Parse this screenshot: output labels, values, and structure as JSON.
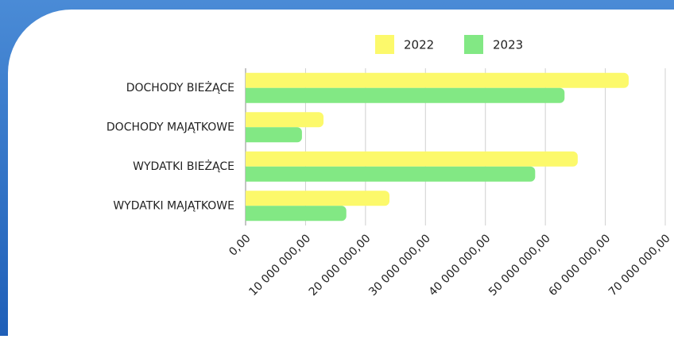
{
  "chart_data": {
    "type": "barh",
    "categories": [
      "DOCHODY BIEŻĄCE",
      "DOCHODY MAJĄTKOWE",
      "WYDATKI BIEŻĄCE",
      "WYDATKI MAJĄTKOWE"
    ],
    "series": [
      {
        "name": "2022",
        "color": "#fcf96b",
        "values": [
          63900000,
          13000000,
          55400000,
          24000000
        ]
      },
      {
        "name": "2023",
        "color": "#82e884",
        "values": [
          53200000,
          9400000,
          48300000,
          16800000
        ]
      }
    ],
    "xlim": [
      0,
      70000000
    ],
    "xticks": [
      {
        "value": 0,
        "label": "0,00"
      },
      {
        "value": 10000000,
        "label": "10 000 000,00"
      },
      {
        "value": 20000000,
        "label": "20 000 000,00"
      },
      {
        "value": 30000000,
        "label": "30 000 000,00"
      },
      {
        "value": 40000000,
        "label": "40 000 000,00"
      },
      {
        "value": 50000000,
        "label": "50 000 000,00"
      },
      {
        "value": 60000000,
        "label": "60 000 000,00"
      },
      {
        "value": 70000000,
        "label": "70 000 000,00"
      }
    ],
    "grid": true,
    "legend": "top"
  }
}
